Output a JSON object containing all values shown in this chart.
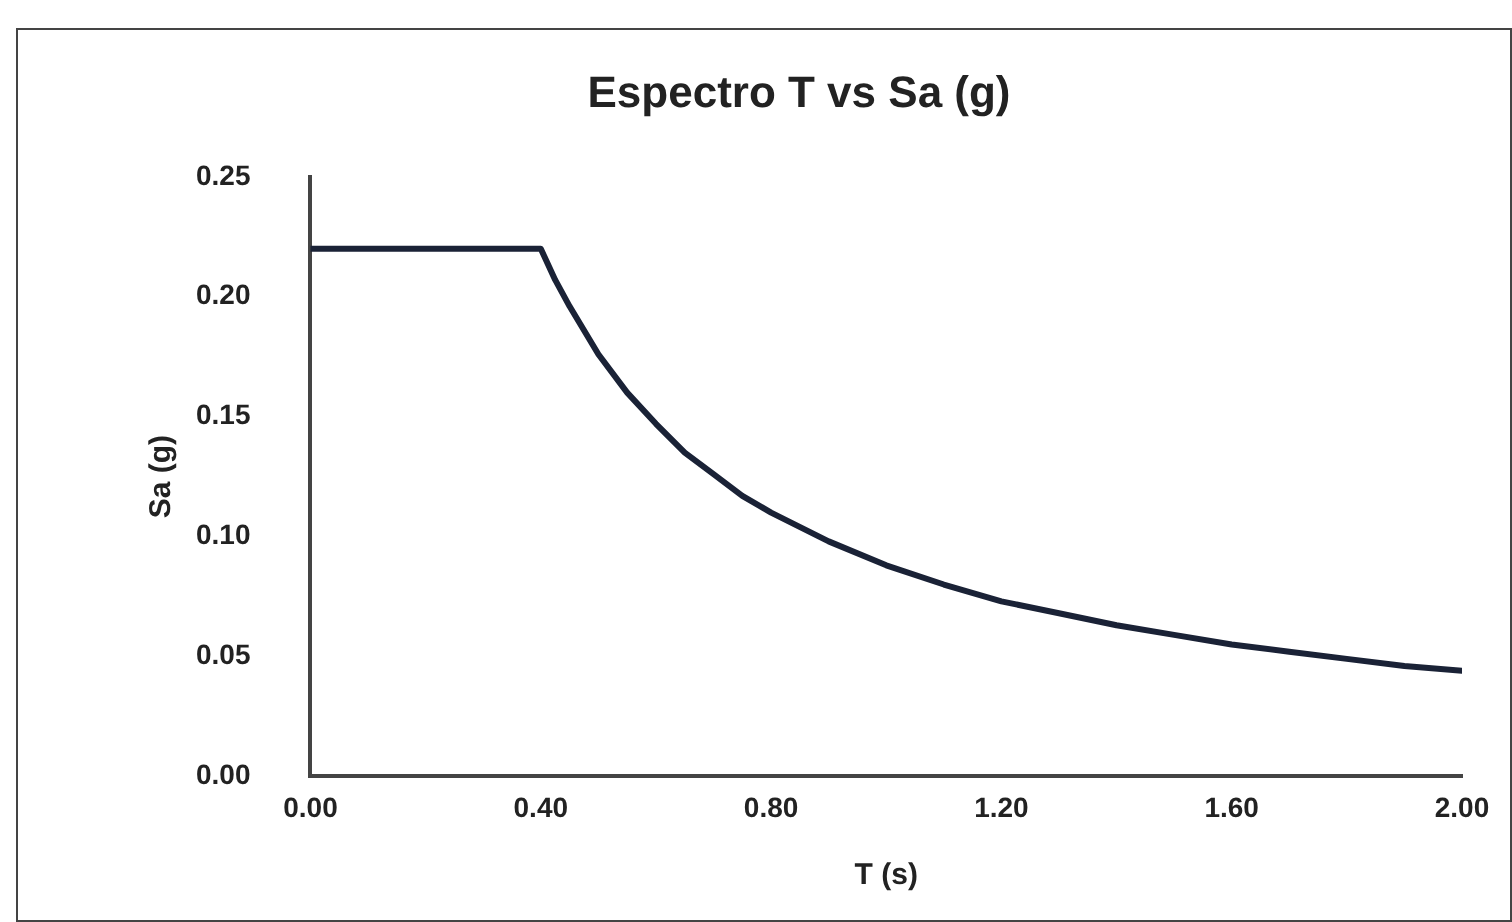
{
  "chart_data": {
    "type": "line",
    "title": "Espectro T vs Sa (g)",
    "xlabel": "T (s)",
    "ylabel": "Sa (g)",
    "x": [
      0,
      0.4,
      0.425,
      0.45,
      0.5,
      0.55,
      0.6,
      0.65,
      0.7,
      0.75,
      0.8,
      0.9,
      1.0,
      1.1,
      1.2,
      1.3,
      1.4,
      1.5,
      1.6,
      1.7,
      1.8,
      1.9,
      2.0
    ],
    "series": [
      {
        "color": "#1a2236",
        "values": [
          0.22,
          0.22,
          0.207,
          0.196,
          0.176,
          0.16,
          0.147,
          0.135,
          0.126,
          0.117,
          0.11,
          0.098,
          0.088,
          0.08,
          0.073,
          0.068,
          0.063,
          0.059,
          0.055,
          0.052,
          0.049,
          0.046,
          0.044
        ]
      }
    ],
    "xlim": [
      0,
      2
    ],
    "xticks": [
      {
        "value": 0,
        "label": "0.00"
      },
      {
        "value": 0.4,
        "label": "0.40"
      },
      {
        "value": 0.8,
        "label": "0.80"
      },
      {
        "value": 1.2,
        "label": "1.20"
      },
      {
        "value": 1.6,
        "label": "1.60"
      },
      {
        "value": 2,
        "label": "2.00"
      }
    ],
    "ylim": [
      0,
      0.25
    ],
    "yticks": [
      {
        "value": 0,
        "label": "0.00"
      },
      {
        "value": 0.05,
        "label": "0.05"
      },
      {
        "value": 0.1,
        "label": "0.10"
      },
      {
        "value": 0.15,
        "label": "0.15"
      },
      {
        "value": 0.2,
        "label": "0.20"
      },
      {
        "value": 0.25,
        "label": "0.25"
      }
    ],
    "grid": false,
    "legend": false,
    "marker": "none",
    "line_style": "solid"
  }
}
